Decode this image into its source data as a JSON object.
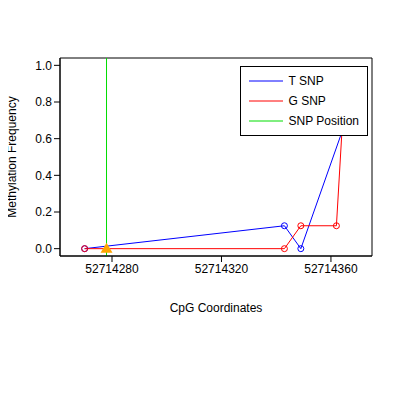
{
  "chart_data": {
    "type": "line",
    "x_label": "CpG Coordinates",
    "y_label": "Methylation Frequency",
    "xlim": [
      52714261,
      52714375
    ],
    "xticks": [
      52714280,
      52714320,
      52714360
    ],
    "ylim": [
      -0.04,
      1.04
    ],
    "yticks": [
      {
        "value": 0,
        "label": "0.0"
      },
      0.2,
      0.4,
      0.6,
      0.8,
      {
        "value": 1,
        "label": "1.0"
      }
    ],
    "grid": false,
    "legend": "upper right",
    "series": [
      {
        "name": "T SNP",
        "color": "#0000ff",
        "marker": "circle",
        "x": [
          52714270,
          52714343,
          52714349,
          52714364
        ],
        "values": [
          0,
          0.125,
          0,
          0.636
        ]
      },
      {
        "name": "G SNP",
        "color": "#ff0000",
        "marker": "circle",
        "x": [
          52714270,
          52714343,
          52714349,
          52714362,
          52714364
        ],
        "values": [
          0,
          0,
          0.125,
          0.125,
          0.636
        ]
      },
      {
        "name": "SNP Position",
        "type": "vline",
        "color": "#00dd00",
        "marker": "triangle",
        "colors": [
          "#ffa500"
        ],
        "x": [
          52714278
        ],
        "values": [
          0
        ]
      }
    ]
  }
}
